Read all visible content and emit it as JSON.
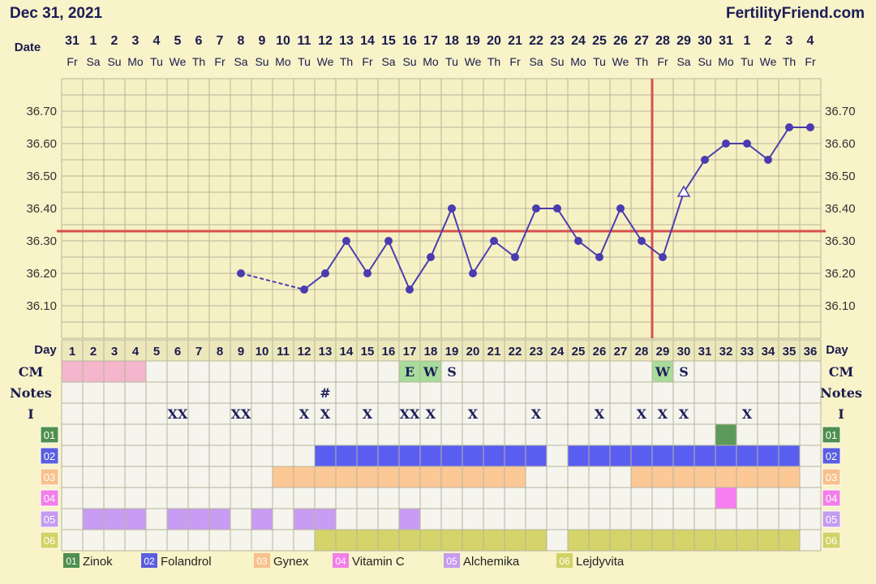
{
  "header": {
    "date": "Dec 31, 2021",
    "site": "FertilityFriend.com"
  },
  "labels": {
    "date": "Date",
    "day": "Day",
    "cm": "CM",
    "notes": "Notes",
    "intercourse": "I"
  },
  "chart_data": {
    "type": "line",
    "dates": [
      "31",
      "1",
      "2",
      "3",
      "4",
      "5",
      "6",
      "7",
      "8",
      "9",
      "10",
      "11",
      "12",
      "13",
      "14",
      "15",
      "16",
      "17",
      "18",
      "19",
      "20",
      "21",
      "22",
      "23",
      "24",
      "25",
      "26",
      "27",
      "28",
      "29",
      "30",
      "31",
      "1",
      "2",
      "3",
      "4"
    ],
    "weekdays": [
      "Fr",
      "Sa",
      "Su",
      "Mo",
      "Tu",
      "We",
      "Th",
      "Fr",
      "Sa",
      "Su",
      "Mo",
      "Tu",
      "We",
      "Th",
      "Fr",
      "Sa",
      "Su",
      "Mo",
      "Tu",
      "We",
      "Th",
      "Fr",
      "Sa",
      "Su",
      "Mo",
      "Tu",
      "We",
      "Th",
      "Fr",
      "Sa",
      "Su",
      "Mo",
      "Tu",
      "We",
      "Th",
      "Fr"
    ],
    "days": [
      "1",
      "2",
      "3",
      "4",
      "5",
      "6",
      "7",
      "8",
      "9",
      "10",
      "11",
      "12",
      "13",
      "14",
      "15",
      "16",
      "17",
      "18",
      "19",
      "20",
      "21",
      "22",
      "23",
      "24",
      "25",
      "26",
      "27",
      "28",
      "29",
      "30",
      "31",
      "32",
      "33",
      "34",
      "35",
      "36"
    ],
    "y_ticks": [
      "36.10",
      "36.20",
      "36.30",
      "36.40",
      "36.50",
      "36.60",
      "36.70"
    ],
    "ylim": [
      36.0,
      36.8
    ],
    "temperatures": [
      null,
      null,
      null,
      null,
      null,
      null,
      null,
      null,
      36.2,
      null,
      null,
      36.15,
      36.2,
      36.3,
      36.2,
      36.3,
      36.15,
      36.25,
      36.4,
      36.2,
      36.3,
      36.25,
      36.4,
      36.4,
      36.3,
      36.25,
      36.4,
      36.3,
      36.25,
      36.45,
      36.55,
      36.6,
      36.6,
      36.55,
      36.65,
      36.65
    ],
    "open_marker_day": 30,
    "coverline": 36.33,
    "ovulation_day": 29,
    "cm": [
      {
        "day": 17,
        "value": "E",
        "highlight": true
      },
      {
        "day": 18,
        "value": "W",
        "highlight": true
      },
      {
        "day": 19,
        "value": "S",
        "highlight": false
      },
      {
        "day": 29,
        "value": "W",
        "highlight": true
      },
      {
        "day": 30,
        "value": "S",
        "highlight": false
      }
    ],
    "notes": [
      {
        "day": 13,
        "value": "#"
      }
    ],
    "intercourse": [
      {
        "day": 6,
        "value": "XX"
      },
      {
        "day": 9,
        "value": "XX"
      },
      {
        "day": 12,
        "value": "X"
      },
      {
        "day": 13,
        "value": "X"
      },
      {
        "day": 15,
        "value": "X"
      },
      {
        "day": 17,
        "value": "XX"
      },
      {
        "day": 18,
        "value": "X"
      },
      {
        "day": 20,
        "value": "X"
      },
      {
        "day": 23,
        "value": "X"
      },
      {
        "day": 26,
        "value": "X"
      },
      {
        "day": 28,
        "value": "X"
      },
      {
        "day": 29,
        "value": "X"
      },
      {
        "day": 30,
        "value": "X"
      },
      {
        "day": 33,
        "value": "X"
      }
    ],
    "period_days": [
      1,
      2,
      3,
      4
    ],
    "period_color": "#f4b6cc",
    "cm_highlight_color": "#a7dc9a",
    "supplements": [
      {
        "code": "01",
        "name": "Zinok",
        "color": "#5c9a5c",
        "badge": "#4f8f4f",
        "days": [
          32
        ]
      },
      {
        "code": "02",
        "name": "Folandrol",
        "color": "#5a5ef0",
        "badge": "#5a5ee0",
        "days": [
          13,
          14,
          15,
          16,
          17,
          18,
          19,
          20,
          21,
          22,
          23,
          25,
          26,
          27,
          28,
          29,
          30,
          31,
          32,
          33,
          34,
          35
        ]
      },
      {
        "code": "03",
        "name": "Gynex",
        "color": "#fcc896",
        "badge": "#f8c08a",
        "days": [
          11,
          12,
          13,
          14,
          15,
          16,
          17,
          18,
          19,
          20,
          21,
          22,
          28,
          29,
          30,
          31,
          32,
          33,
          34,
          35
        ]
      },
      {
        "code": "04",
        "name": "Vitamin C",
        "color": "#f77ef0",
        "badge": "#f27ee8",
        "days": [
          32
        ]
      },
      {
        "code": "05",
        "name": "Alchemika",
        "color": "#c99cf4",
        "badge": "#c59cf0",
        "days": [
          2,
          3,
          4,
          6,
          7,
          8,
          10,
          12,
          13,
          17
        ]
      },
      {
        "code": "06",
        "name": "Lejdyvita",
        "color": "#d4d46a",
        "badge": "#d2d266",
        "days": [
          13,
          14,
          15,
          16,
          17,
          18,
          19,
          20,
          21,
          22,
          23,
          25,
          26,
          27,
          28,
          29,
          30,
          31,
          32,
          33,
          34,
          35
        ]
      }
    ]
  },
  "colors": {
    "background": "#f8f3c8",
    "grid": "#b8b49a",
    "line": "#4a3cb0",
    "coverline": "#d65050",
    "text": "#1a1a4e"
  }
}
